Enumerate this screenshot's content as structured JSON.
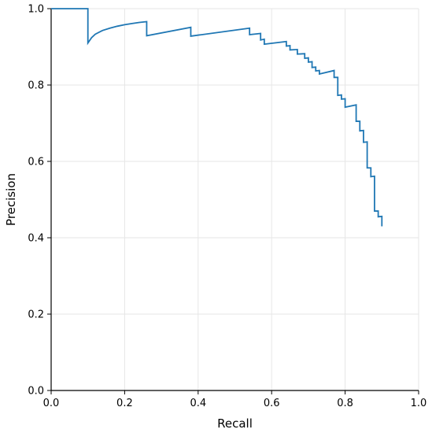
{
  "chart_data": {
    "type": "line",
    "title": "",
    "xlabel": "Recall",
    "ylabel": "Precision",
    "xlim": [
      0.0,
      1.0
    ],
    "ylim": [
      0.0,
      1.0
    ],
    "xticks": [
      "0.0",
      "0.2",
      "0.4",
      "0.6",
      "0.8",
      "1.0"
    ],
    "yticks": [
      "0.0",
      "0.2",
      "0.4",
      "0.6",
      "0.8",
      "1.0"
    ],
    "grid": true,
    "legend": "none",
    "colors": {
      "line": "#1f77b4",
      "grid": "#e6e6e6",
      "axis": "#000000"
    },
    "series": [
      {
        "x": [
          0.0,
          0.1,
          0.1,
          0.11,
          0.12,
          0.14,
          0.16,
          0.18,
          0.2,
          0.22,
          0.24,
          0.26,
          0.26,
          0.38,
          0.38,
          0.54,
          0.54,
          0.57,
          0.57,
          0.58,
          0.58,
          0.64,
          0.64,
          0.65,
          0.65,
          0.67,
          0.67,
          0.69,
          0.69,
          0.7,
          0.7,
          0.71,
          0.71,
          0.72,
          0.72,
          0.73,
          0.73,
          0.77,
          0.77,
          0.78,
          0.78,
          0.79,
          0.79,
          0.8,
          0.8,
          0.83,
          0.83,
          0.84,
          0.84,
          0.85,
          0.85,
          0.86,
          0.86,
          0.87,
          0.87,
          0.88,
          0.88,
          0.89,
          0.89,
          0.9,
          0.9
        ],
        "y": [
          1.0,
          1.0,
          0.91,
          0.924,
          0.933,
          0.943,
          0.949,
          0.954,
          0.958,
          0.961,
          0.964,
          0.966,
          0.929,
          0.951,
          0.928,
          0.949,
          0.932,
          0.935,
          0.918,
          0.92,
          0.907,
          0.914,
          0.902,
          0.903,
          0.892,
          0.893,
          0.881,
          0.882,
          0.87,
          0.871,
          0.86,
          0.861,
          0.846,
          0.847,
          0.837,
          0.838,
          0.829,
          0.838,
          0.82,
          0.82,
          0.773,
          0.774,
          0.763,
          0.764,
          0.742,
          0.748,
          0.705,
          0.705,
          0.68,
          0.681,
          0.65,
          0.651,
          0.583,
          0.583,
          0.56,
          0.561,
          0.47,
          0.47,
          0.455,
          0.456,
          0.43
        ]
      }
    ]
  }
}
